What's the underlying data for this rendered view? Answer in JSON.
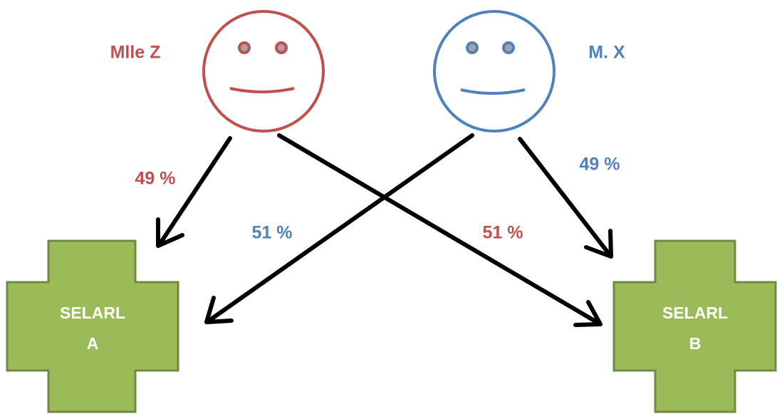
{
  "persons": [
    {
      "label": "Mlle Z"
    },
    {
      "label": "M. X"
    }
  ],
  "entities": [
    {
      "lines": [
        "SELARL",
        "A"
      ]
    },
    {
      "lines": [
        "SELARL",
        "B"
      ]
    }
  ],
  "edges": [
    {
      "label": "49 %"
    },
    {
      "label": "51 %"
    },
    {
      "label": "51 %"
    },
    {
      "label": "49 %"
    }
  ]
}
